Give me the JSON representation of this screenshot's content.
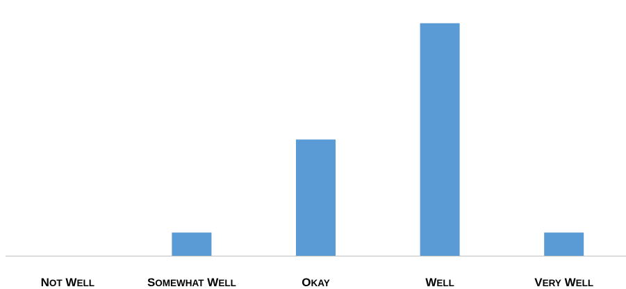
{
  "chart_data": {
    "type": "bar",
    "categories": [
      "Not well",
      "Somewhat well",
      "Okay",
      "Well",
      "Very Well"
    ],
    "values": [
      0,
      1,
      5,
      10,
      1
    ],
    "title": "",
    "xlabel": "",
    "ylabel": "",
    "ylim": [
      0,
      11
    ],
    "grid": false,
    "legend": "none",
    "label_style": "small-caps",
    "bar_color": "#5B9BD5",
    "axis_color": "#BFBFBF"
  }
}
